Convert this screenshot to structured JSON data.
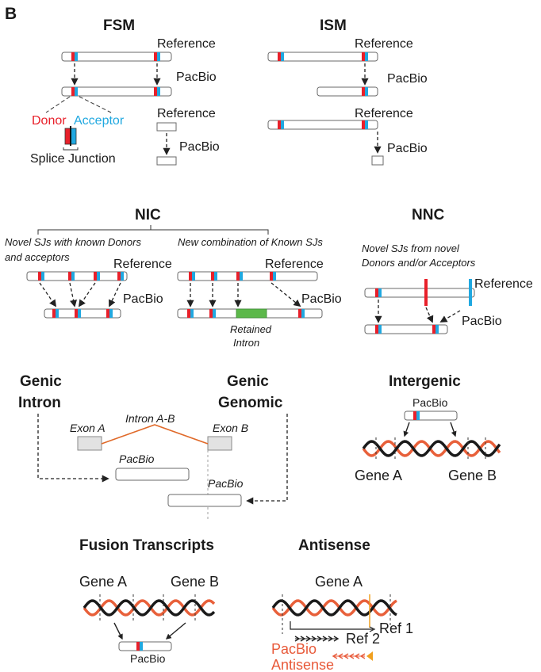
{
  "panel_letter": "B",
  "fsm": {
    "title": "FSM",
    "reference": "Reference",
    "pacbio": "PacBio",
    "donor": "Donor",
    "acceptor": "Acceptor",
    "splice_junction": "Splice Junction",
    "reference2": "Reference",
    "pacbio2": "PacBio"
  },
  "ism": {
    "title": "ISM",
    "reference": "Reference",
    "pacbio": "PacBio",
    "reference2": "Reference",
    "pacbio2": "PacBio"
  },
  "nic": {
    "title": "NIC",
    "left_desc_1": "Novel SJs with known Donors",
    "left_desc_2": "and acceptors",
    "right_desc": "New combination of Known SJs",
    "reference_left": "Reference",
    "pacbio_left": "PacBio",
    "reference_right": "Reference",
    "pacbio_right": "PacBio",
    "retained_1": "Retained",
    "retained_2": "Intron"
  },
  "nnc": {
    "title": "NNC",
    "desc_1": "Novel  SJs from novel",
    "desc_2": "Donors and/or Acceptors",
    "reference": "Reference",
    "pacbio": "PacBio"
  },
  "genic": {
    "intron_1": "Genic",
    "intron_2": "Intron",
    "genomic_1": "Genic",
    "genomic_2": "Genomic",
    "exon_a": "Exon A",
    "exon_b": "Exon B",
    "intron_ab": "Intron A-B",
    "pacbio_1": "PacBio",
    "pacbio_2": "PacBio"
  },
  "intergenic": {
    "title": "Intergenic",
    "pacbio": "PacBio",
    "gene_a": "Gene A",
    "gene_b": "Gene B"
  },
  "fusion": {
    "title": "Fusion Transcripts",
    "gene_a": "Gene A",
    "gene_b": "Gene B",
    "pacbio": "PacBio"
  },
  "antisense": {
    "title": "Antisense",
    "gene_a": "Gene A",
    "ref1": "Ref 1",
    "ref2": "Ref 2",
    "pacbio": "PacBio",
    "antisense": "Antisense"
  },
  "colors": {
    "donor": "#e8202a",
    "acceptor": "#20a8e0",
    "retained_intron": "#5cb84a",
    "strand_orange": "#e8603a",
    "strand_black": "#1a1a1a",
    "intron_line": "#e06a2a",
    "antisense_arrow": "#e85a3a",
    "antisense_marker": "#f0a020"
  }
}
